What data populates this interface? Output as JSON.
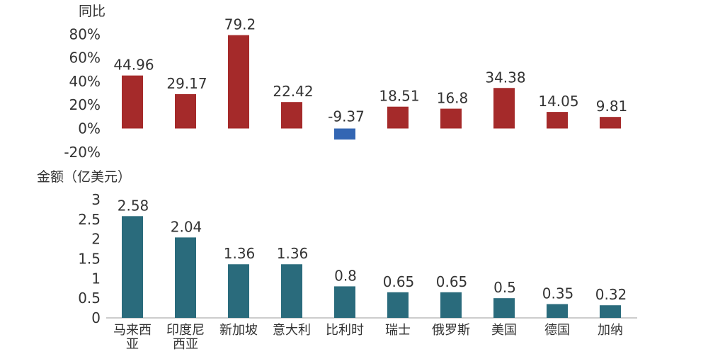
{
  "chart_data": [
    {
      "type": "bar",
      "ylabel": "同比",
      "categories": [
        "马来西亚",
        "印度尼西亚",
        "新加坡",
        "意大利",
        "比利时",
        "瑞士",
        "俄罗斯",
        "美国",
        "德国",
        "加纳"
      ],
      "values": [
        44.96,
        29.17,
        79.2,
        22.42,
        -9.37,
        18.51,
        16.8,
        34.38,
        14.05,
        9.81
      ],
      "value_labels": [
        "44.96",
        "29.17",
        "79.2",
        "22.42",
        "-9.37",
        "18.51",
        "16.8",
        "34.38",
        "14.05",
        "9.81"
      ],
      "yticks": [
        "-20%",
        "0%",
        "20%",
        "40%",
        "60%",
        "80%"
      ],
      "ylim": [
        -20,
        80
      ],
      "colors": {
        "positive": "#a52a2a",
        "negative": "#3366b3"
      }
    },
    {
      "type": "bar",
      "ylabel": "金额（亿美元）",
      "categories": [
        "马来西亚",
        "印度尼西亚",
        "新加坡",
        "意大利",
        "比利时",
        "瑞士",
        "俄罗斯",
        "美国",
        "德国",
        "加纳"
      ],
      "category_lines": [
        [
          "马来西",
          "亚"
        ],
        [
          "印度尼",
          "西亚"
        ],
        [
          "新加坡"
        ],
        [
          "意大利"
        ],
        [
          "比利时"
        ],
        [
          "瑞士"
        ],
        [
          "俄罗斯"
        ],
        [
          "美国"
        ],
        [
          "德国"
        ],
        [
          "加纳"
        ]
      ],
      "values": [
        2.58,
        2.04,
        1.36,
        1.36,
        0.8,
        0.65,
        0.65,
        0.5,
        0.35,
        0.32
      ],
      "value_labels": [
        "2.58",
        "2.04",
        "1.36",
        "1.36",
        "0.8",
        "0.65",
        "0.65",
        "0.5",
        "0.35",
        "0.32"
      ],
      "yticks": [
        "0",
        "0.5",
        "1",
        "1.5",
        "2",
        "2.5",
        "3"
      ],
      "ylim": [
        0,
        3
      ],
      "colors": {
        "bar": "#2a6b7c",
        "axis": "#999999"
      }
    }
  ]
}
